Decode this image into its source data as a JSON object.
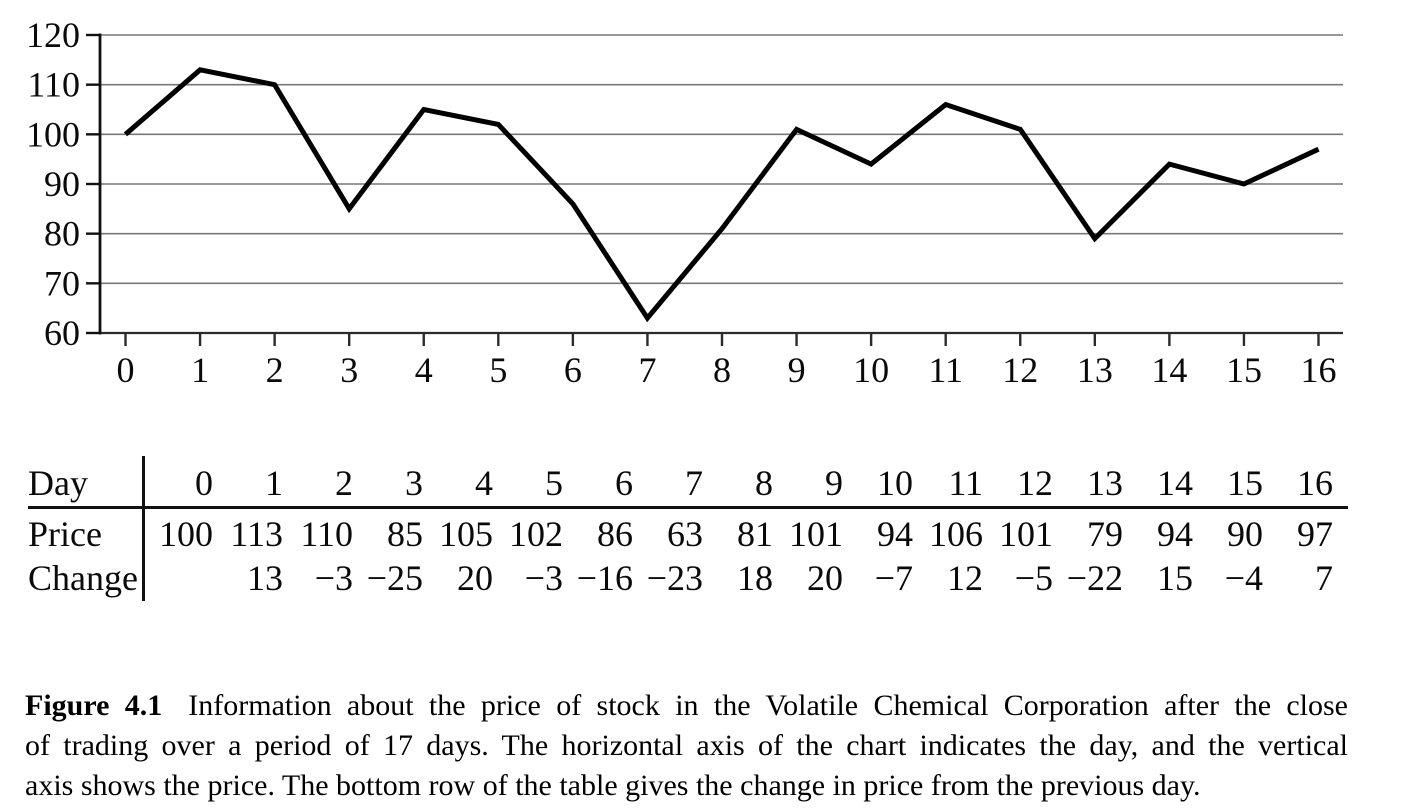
{
  "figure": {
    "label": "Figure 4.1",
    "caption": "Information about the price of stock in the Volatile Chemical Corporation after the close of trading over a period of 17 days. The horizontal axis of the chart indicates the day, and the vertical axis shows the price. The bottom row of the table gives the change in price from the previous day.",
    "caption_lines": [
      "Information about the price of stock in the Volatile Chemical Corporation after the close",
      "of trading over a period of 17 days. The horizontal axis of the chart indicates the day, and the vertical",
      "axis shows the price. The bottom row of the table gives the change in price from the previous day."
    ]
  },
  "chart_data": {
    "type": "line",
    "title": "",
    "xlabel": "",
    "ylabel": "",
    "x": [
      0,
      1,
      2,
      3,
      4,
      5,
      6,
      7,
      8,
      9,
      10,
      11,
      12,
      13,
      14,
      15,
      16
    ],
    "series": [
      {
        "name": "Price",
        "values": [
          100,
          113,
          110,
          85,
          105,
          102,
          86,
          63,
          81,
          101,
          94,
          106,
          101,
          79,
          94,
          90,
          97
        ]
      }
    ],
    "ylim": [
      60,
      120
    ],
    "yticks": [
      120,
      110,
      100,
      90,
      80,
      70,
      60
    ],
    "xticks": [
      0,
      1,
      2,
      3,
      4,
      5,
      6,
      7,
      8,
      9,
      10,
      11,
      12,
      13,
      14,
      15,
      16
    ],
    "grid": true,
    "legend": false,
    "line_color": "#000000",
    "grid_color": "#777777",
    "axis_color": "#111111"
  },
  "table": {
    "rows": [
      {
        "label": "Day",
        "values": [
          "0",
          "1",
          "2",
          "3",
          "4",
          "5",
          "6",
          "7",
          "8",
          "9",
          "10",
          "11",
          "12",
          "13",
          "14",
          "15",
          "16"
        ]
      },
      {
        "label": "Price",
        "values": [
          "100",
          "113",
          "110",
          "85",
          "105",
          "102",
          "86",
          "63",
          "81",
          "101",
          "94",
          "106",
          "101",
          "79",
          "94",
          "90",
          "97"
        ]
      },
      {
        "label": "Change",
        "values": [
          "",
          "13",
          "−3",
          "−25",
          "20",
          "−3",
          "−16",
          "−23",
          "18",
          "20",
          "−7",
          "12",
          "−5",
          "−22",
          "15",
          "−4",
          "7"
        ]
      }
    ]
  }
}
